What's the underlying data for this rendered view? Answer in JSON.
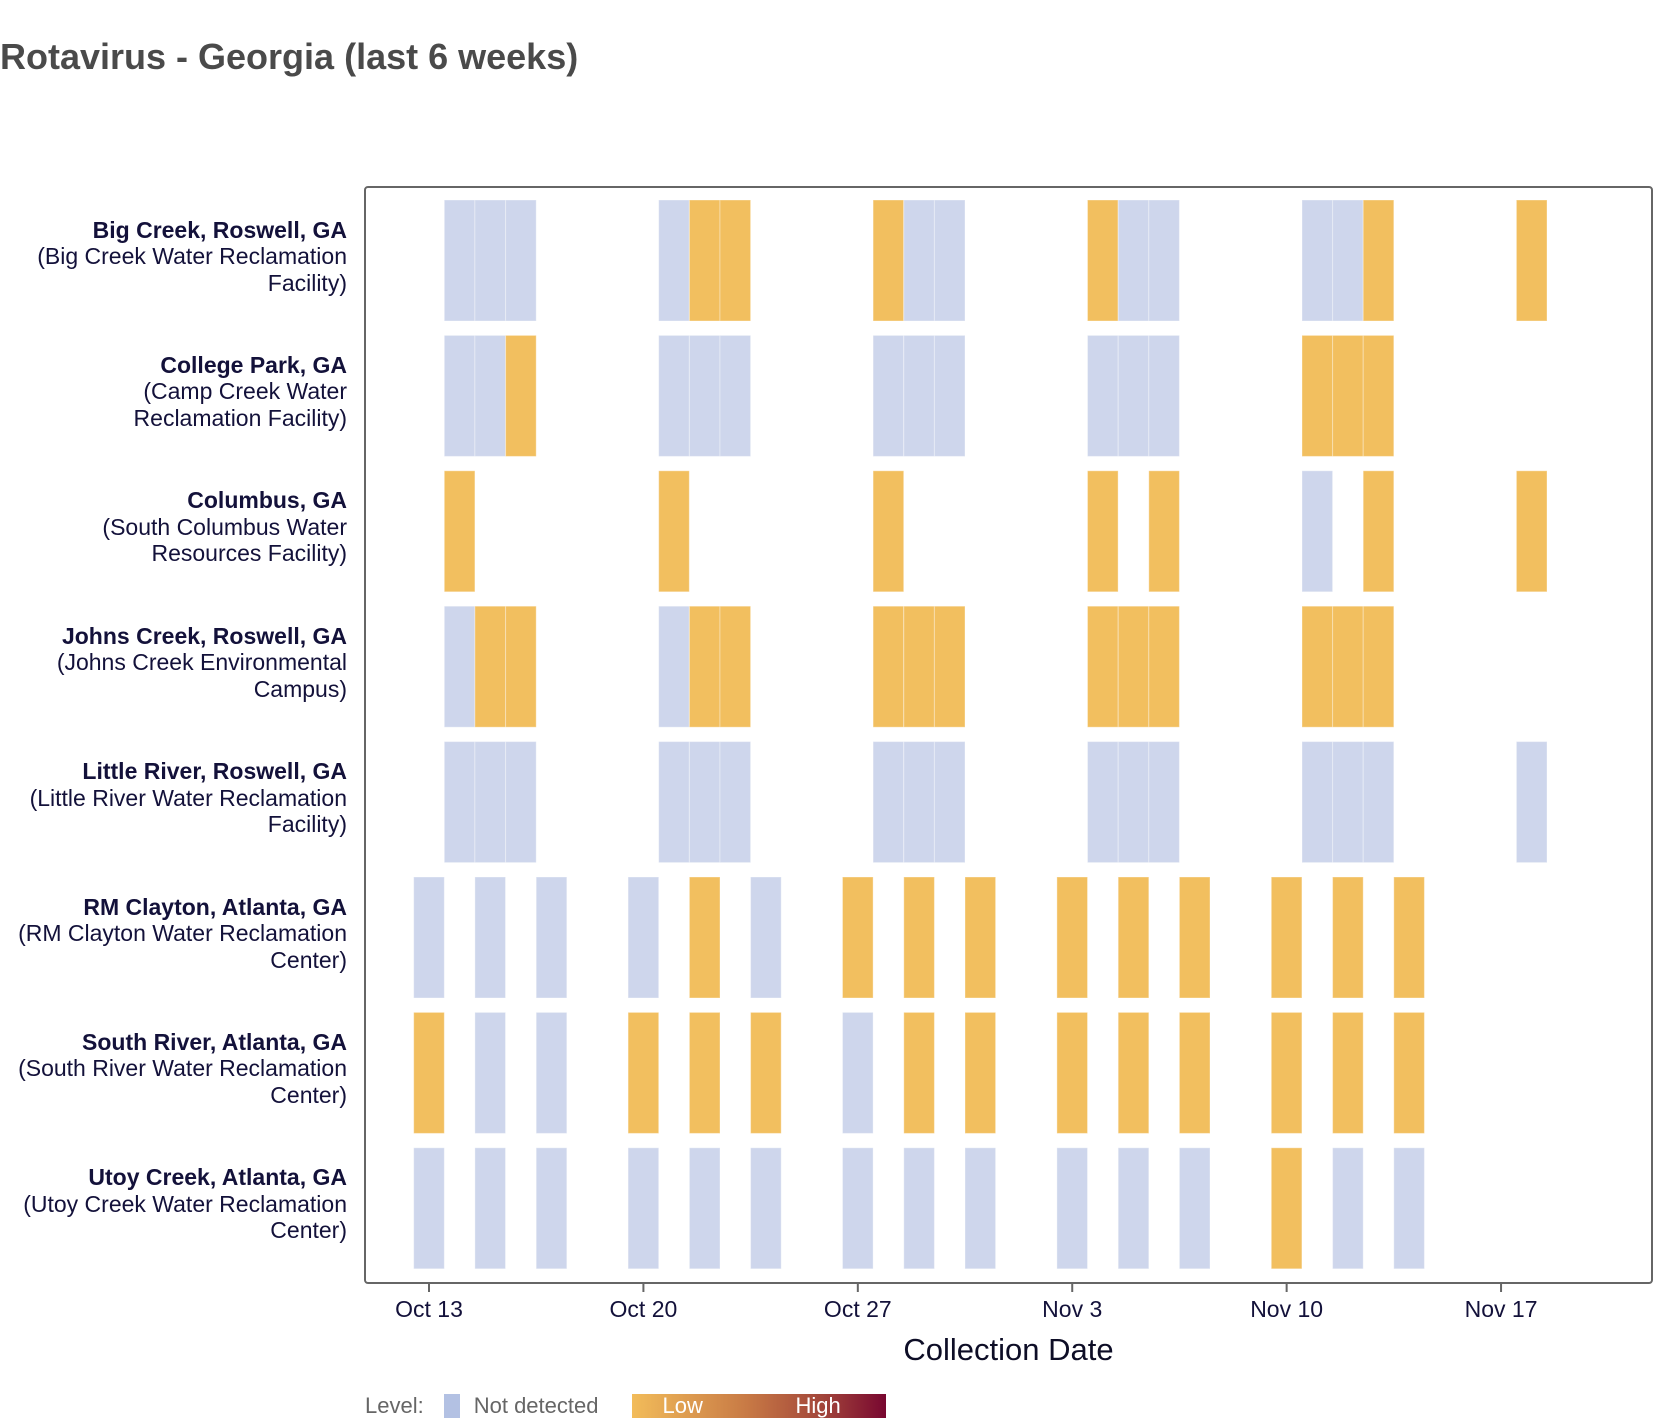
{
  "title": "Rotavirus - Georgia (last 6 weeks)",
  "chart_data": {
    "type": "heatmap",
    "title": "Rotavirus - Georgia (last 6 weeks)",
    "xlabel": "Collection Date",
    "ylabel": "",
    "x_range": [
      "2024-10-11",
      "2024-11-21"
    ],
    "x_ticks": [
      {
        "date": "2024-10-13",
        "label": "Oct 13"
      },
      {
        "date": "2024-10-20",
        "label": "Oct 20"
      },
      {
        "date": "2024-10-27",
        "label": "Oct 27"
      },
      {
        "date": "2024-11-03",
        "label": "Nov 3"
      },
      {
        "date": "2024-11-10",
        "label": "Nov 10"
      },
      {
        "date": "2024-11-17",
        "label": "Nov 17"
      }
    ],
    "level_colors": {
      "not_detected": "#ced6ec",
      "low": "#f2bf5f",
      "high": "#780730"
    },
    "legend": {
      "title": "Level:",
      "not_detected_label": "Not detected",
      "low_label": "Low",
      "high_label": "High",
      "placement": "bottom-left"
    },
    "sites": [
      {
        "name": "Big Creek, Roswell, GA",
        "facility": "(Big Creek Water Reclamation Facility)",
        "samples": [
          {
            "date": "2024-10-14",
            "level": "not_detected"
          },
          {
            "date": "2024-10-15",
            "level": "not_detected"
          },
          {
            "date": "2024-10-16",
            "level": "not_detected"
          },
          {
            "date": "2024-10-21",
            "level": "not_detected"
          },
          {
            "date": "2024-10-22",
            "level": "low"
          },
          {
            "date": "2024-10-23",
            "level": "low"
          },
          {
            "date": "2024-10-28",
            "level": "low"
          },
          {
            "date": "2024-10-29",
            "level": "not_detected"
          },
          {
            "date": "2024-10-30",
            "level": "not_detected"
          },
          {
            "date": "2024-11-04",
            "level": "low"
          },
          {
            "date": "2024-11-05",
            "level": "not_detected"
          },
          {
            "date": "2024-11-06",
            "level": "not_detected"
          },
          {
            "date": "2024-11-11",
            "level": "not_detected"
          },
          {
            "date": "2024-11-12",
            "level": "not_detected"
          },
          {
            "date": "2024-11-13",
            "level": "low"
          },
          {
            "date": "2024-11-18",
            "level": "low"
          }
        ]
      },
      {
        "name": "College Park, GA",
        "facility": "(Camp Creek Water Reclamation Facility)",
        "samples": [
          {
            "date": "2024-10-14",
            "level": "not_detected"
          },
          {
            "date": "2024-10-15",
            "level": "not_detected"
          },
          {
            "date": "2024-10-16",
            "level": "low"
          },
          {
            "date": "2024-10-21",
            "level": "not_detected"
          },
          {
            "date": "2024-10-22",
            "level": "not_detected"
          },
          {
            "date": "2024-10-23",
            "level": "not_detected"
          },
          {
            "date": "2024-10-28",
            "level": "not_detected"
          },
          {
            "date": "2024-10-29",
            "level": "not_detected"
          },
          {
            "date": "2024-10-30",
            "level": "not_detected"
          },
          {
            "date": "2024-11-04",
            "level": "not_detected"
          },
          {
            "date": "2024-11-05",
            "level": "not_detected"
          },
          {
            "date": "2024-11-06",
            "level": "not_detected"
          },
          {
            "date": "2024-11-11",
            "level": "low"
          },
          {
            "date": "2024-11-12",
            "level": "low"
          },
          {
            "date": "2024-11-13",
            "level": "low"
          }
        ]
      },
      {
        "name": "Columbus, GA",
        "facility": "(South Columbus Water Resources Facility)",
        "samples": [
          {
            "date": "2024-10-14",
            "level": "low"
          },
          {
            "date": "2024-10-21",
            "level": "low"
          },
          {
            "date": "2024-10-28",
            "level": "low"
          },
          {
            "date": "2024-11-04",
            "level": "low"
          },
          {
            "date": "2024-11-06",
            "level": "low"
          },
          {
            "date": "2024-11-11",
            "level": "not_detected"
          },
          {
            "date": "2024-11-13",
            "level": "low"
          },
          {
            "date": "2024-11-18",
            "level": "low"
          }
        ]
      },
      {
        "name": "Johns Creek, Roswell, GA",
        "facility": "(Johns Creek Environmental Campus)",
        "samples": [
          {
            "date": "2024-10-14",
            "level": "not_detected"
          },
          {
            "date": "2024-10-15",
            "level": "low"
          },
          {
            "date": "2024-10-16",
            "level": "low"
          },
          {
            "date": "2024-10-21",
            "level": "not_detected"
          },
          {
            "date": "2024-10-22",
            "level": "low"
          },
          {
            "date": "2024-10-23",
            "level": "low"
          },
          {
            "date": "2024-10-28",
            "level": "low"
          },
          {
            "date": "2024-10-29",
            "level": "low"
          },
          {
            "date": "2024-10-30",
            "level": "low"
          },
          {
            "date": "2024-11-04",
            "level": "low"
          },
          {
            "date": "2024-11-05",
            "level": "low"
          },
          {
            "date": "2024-11-06",
            "level": "low"
          },
          {
            "date": "2024-11-11",
            "level": "low"
          },
          {
            "date": "2024-11-12",
            "level": "low"
          },
          {
            "date": "2024-11-13",
            "level": "low"
          }
        ]
      },
      {
        "name": "Little River, Roswell, GA",
        "facility": "(Little River Water Reclamation Facility)",
        "samples": [
          {
            "date": "2024-10-14",
            "level": "not_detected"
          },
          {
            "date": "2024-10-15",
            "level": "not_detected"
          },
          {
            "date": "2024-10-16",
            "level": "not_detected"
          },
          {
            "date": "2024-10-21",
            "level": "not_detected"
          },
          {
            "date": "2024-10-22",
            "level": "not_detected"
          },
          {
            "date": "2024-10-23",
            "level": "not_detected"
          },
          {
            "date": "2024-10-28",
            "level": "not_detected"
          },
          {
            "date": "2024-10-29",
            "level": "not_detected"
          },
          {
            "date": "2024-10-30",
            "level": "not_detected"
          },
          {
            "date": "2024-11-04",
            "level": "not_detected"
          },
          {
            "date": "2024-11-05",
            "level": "not_detected"
          },
          {
            "date": "2024-11-06",
            "level": "not_detected"
          },
          {
            "date": "2024-11-11",
            "level": "not_detected"
          },
          {
            "date": "2024-11-12",
            "level": "not_detected"
          },
          {
            "date": "2024-11-13",
            "level": "not_detected"
          },
          {
            "date": "2024-11-18",
            "level": "not_detected"
          }
        ]
      },
      {
        "name": "RM Clayton, Atlanta, GA",
        "facility": "(RM Clayton Water Reclamation Center)",
        "samples": [
          {
            "date": "2024-10-13",
            "level": "not_detected"
          },
          {
            "date": "2024-10-15",
            "level": "not_detected"
          },
          {
            "date": "2024-10-17",
            "level": "not_detected"
          },
          {
            "date": "2024-10-20",
            "level": "not_detected"
          },
          {
            "date": "2024-10-22",
            "level": "low"
          },
          {
            "date": "2024-10-24",
            "level": "not_detected"
          },
          {
            "date": "2024-10-27",
            "level": "low"
          },
          {
            "date": "2024-10-29",
            "level": "low"
          },
          {
            "date": "2024-10-31",
            "level": "low"
          },
          {
            "date": "2024-11-03",
            "level": "low"
          },
          {
            "date": "2024-11-05",
            "level": "low"
          },
          {
            "date": "2024-11-07",
            "level": "low"
          },
          {
            "date": "2024-11-10",
            "level": "low"
          },
          {
            "date": "2024-11-12",
            "level": "low"
          },
          {
            "date": "2024-11-14",
            "level": "low"
          }
        ]
      },
      {
        "name": "South River, Atlanta, GA",
        "facility": "(South River Water Reclamation Center)",
        "samples": [
          {
            "date": "2024-10-13",
            "level": "low"
          },
          {
            "date": "2024-10-15",
            "level": "not_detected"
          },
          {
            "date": "2024-10-17",
            "level": "not_detected"
          },
          {
            "date": "2024-10-20",
            "level": "low"
          },
          {
            "date": "2024-10-22",
            "level": "low"
          },
          {
            "date": "2024-10-24",
            "level": "low"
          },
          {
            "date": "2024-10-27",
            "level": "not_detected"
          },
          {
            "date": "2024-10-29",
            "level": "low"
          },
          {
            "date": "2024-10-31",
            "level": "low"
          },
          {
            "date": "2024-11-03",
            "level": "low"
          },
          {
            "date": "2024-11-05",
            "level": "low"
          },
          {
            "date": "2024-11-07",
            "level": "low"
          },
          {
            "date": "2024-11-10",
            "level": "low"
          },
          {
            "date": "2024-11-12",
            "level": "low"
          },
          {
            "date": "2024-11-14",
            "level": "low"
          }
        ]
      },
      {
        "name": "Utoy Creek, Atlanta, GA",
        "facility": "(Utoy Creek Water Reclamation Center)",
        "samples": [
          {
            "date": "2024-10-13",
            "level": "not_detected"
          },
          {
            "date": "2024-10-15",
            "level": "not_detected"
          },
          {
            "date": "2024-10-17",
            "level": "not_detected"
          },
          {
            "date": "2024-10-20",
            "level": "not_detected"
          },
          {
            "date": "2024-10-22",
            "level": "not_detected"
          },
          {
            "date": "2024-10-24",
            "level": "not_detected"
          },
          {
            "date": "2024-10-27",
            "level": "not_detected"
          },
          {
            "date": "2024-10-29",
            "level": "not_detected"
          },
          {
            "date": "2024-10-31",
            "level": "not_detected"
          },
          {
            "date": "2024-11-03",
            "level": "not_detected"
          },
          {
            "date": "2024-11-05",
            "level": "not_detected"
          },
          {
            "date": "2024-11-07",
            "level": "not_detected"
          },
          {
            "date": "2024-11-10",
            "level": "low"
          },
          {
            "date": "2024-11-12",
            "level": "not_detected"
          },
          {
            "date": "2024-11-14",
            "level": "not_detected"
          }
        ]
      }
    ]
  }
}
